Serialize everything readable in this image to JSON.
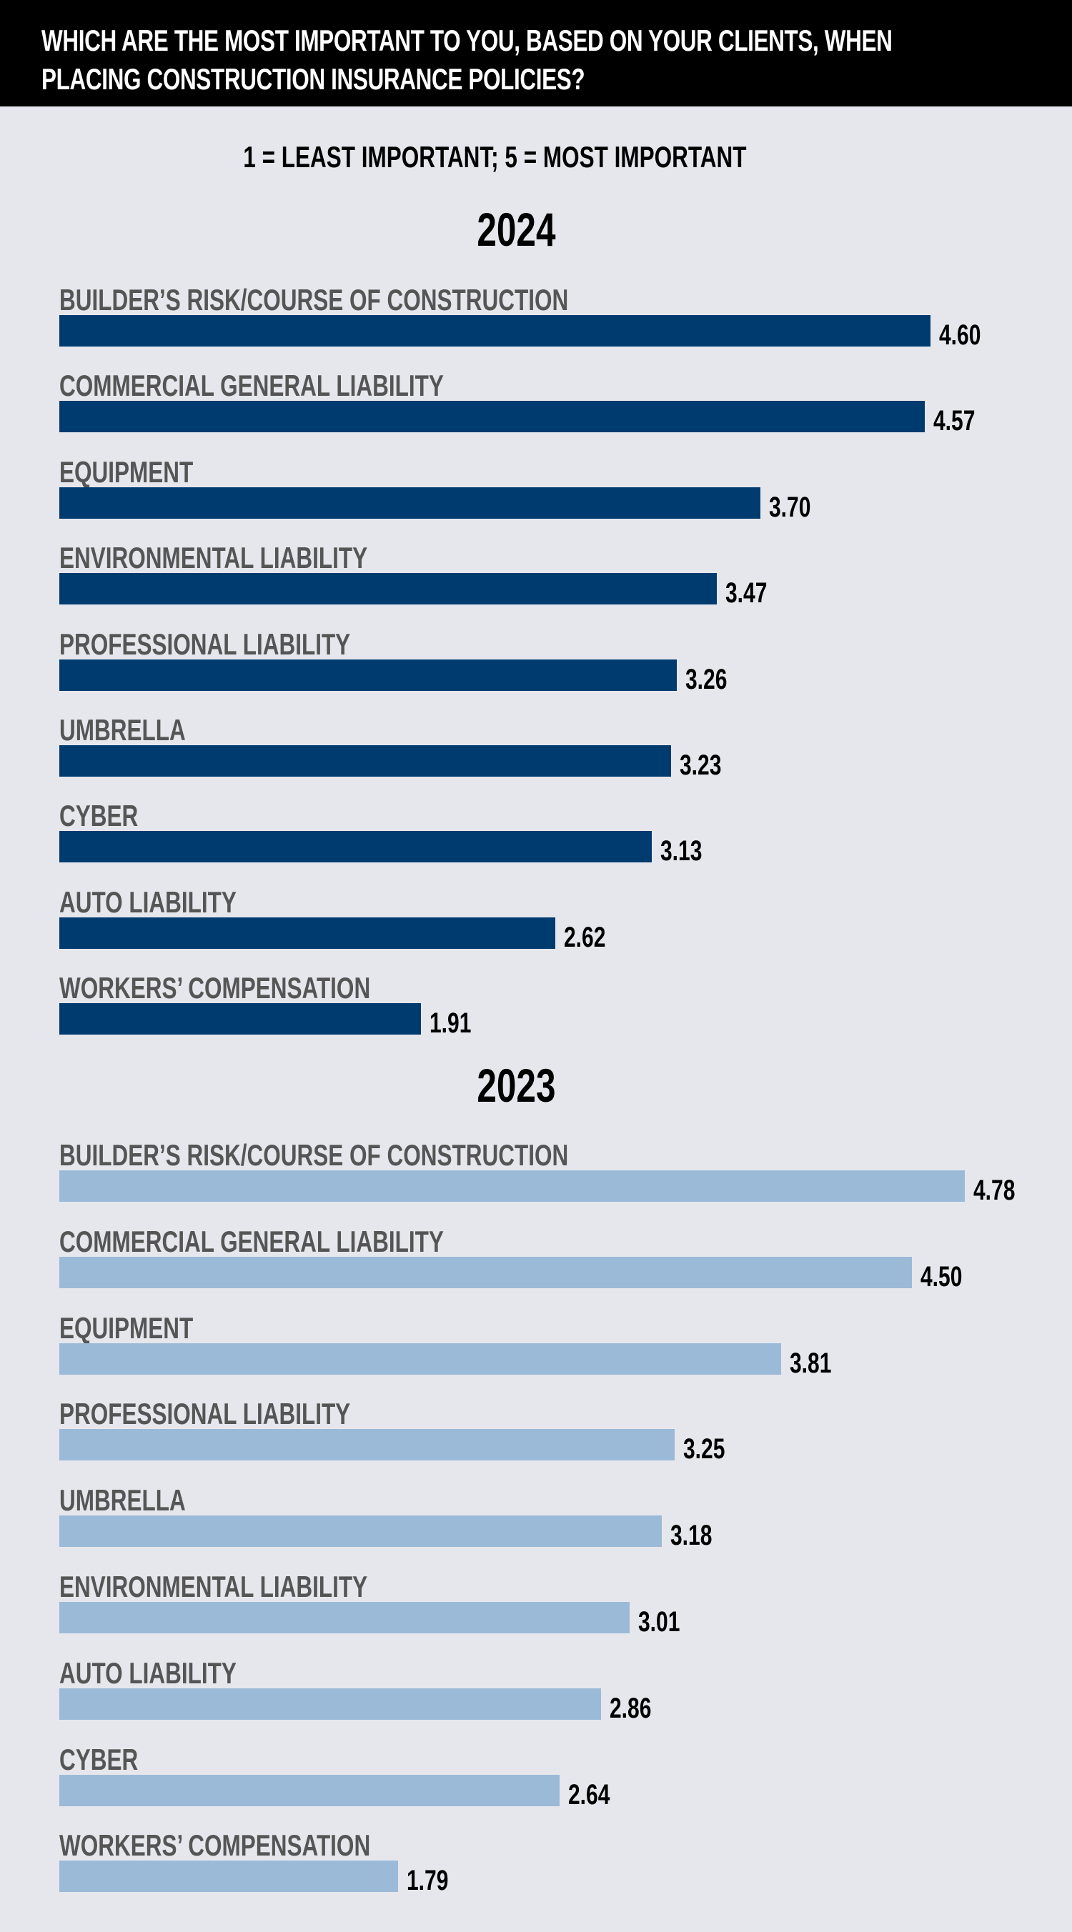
{
  "title": "WHICH ARE THE MOST IMPORTANT TO YOU, BASED ON YOUR CLIENTS, WHEN PLACING CONSTRUCTION INSURANCE POLICIES?",
  "subtitle": "1 = LEAST IMPORTANT; 5 = MOST IMPORTANT",
  "chart_data": [
    {
      "type": "bar",
      "orientation": "horizontal",
      "title": "2024",
      "color": "#003b70",
      "xlim": [
        0,
        5
      ],
      "categories": [
        "BUILDER’S RISK/COURSE OF CONSTRUCTION",
        "COMMERCIAL GENERAL LIABILITY",
        "EQUIPMENT",
        "ENVIRONMENTAL LIABILITY",
        "PROFESSIONAL LIABILITY",
        "UMBRELLA",
        "CYBER",
        "AUTO LIABILITY",
        "WORKERS’ COMPENSATION"
      ],
      "values": [
        4.6,
        4.57,
        3.7,
        3.47,
        3.26,
        3.23,
        3.13,
        2.62,
        1.91
      ],
      "labels": [
        "4.60",
        "4.57",
        "3.70",
        "3.47",
        "3.26",
        "3.23",
        "3.13",
        "2.62",
        "1.91"
      ]
    },
    {
      "type": "bar",
      "orientation": "horizontal",
      "title": "2023",
      "color": "#9bbad8",
      "xlim": [
        0,
        5
      ],
      "categories": [
        "BUILDER’S RISK/COURSE OF CONSTRUCTION",
        "COMMERCIAL GENERAL LIABILITY",
        "EQUIPMENT",
        "PROFESSIONAL LIABILITY",
        "UMBRELLA",
        "ENVIRONMENTAL LIABILITY",
        "AUTO LIABILITY",
        "CYBER",
        "WORKERS’ COMPENSATION"
      ],
      "values": [
        4.78,
        4.5,
        3.81,
        3.25,
        3.18,
        3.01,
        2.86,
        2.64,
        1.79
      ],
      "labels": [
        "4.78",
        "4.50",
        "3.81",
        "3.25",
        "3.18",
        "3.01",
        "2.86",
        "2.64",
        "1.79"
      ]
    }
  ]
}
